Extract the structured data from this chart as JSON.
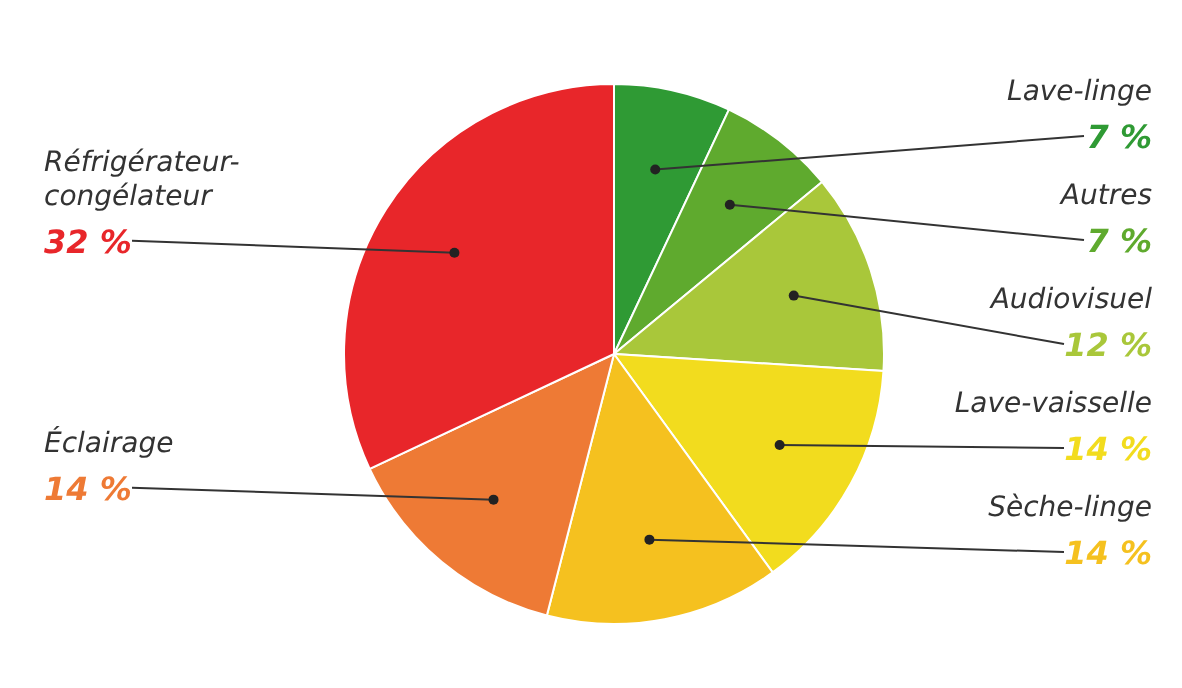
{
  "chart_data": {
    "type": "pie",
    "categories": [
      "Lave-linge",
      "Autres",
      "Audiovisuel",
      "Lave-vaisselle",
      "Sèche-linge",
      "Éclairage",
      "Réfrigérateur-\ncongélateur"
    ],
    "values": [
      7,
      7,
      12,
      14,
      14,
      14,
      32
    ],
    "colors": [
      "#2f9a34",
      "#5faa2e",
      "#a9c73a",
      "#f2dc1e",
      "#f5c11f",
      "#ee7a35",
      "#e8262a"
    ],
    "value_labels": [
      "7 %",
      "7 %",
      "12 %",
      "14 %",
      "14 %",
      "14 %",
      "32 %"
    ]
  }
}
